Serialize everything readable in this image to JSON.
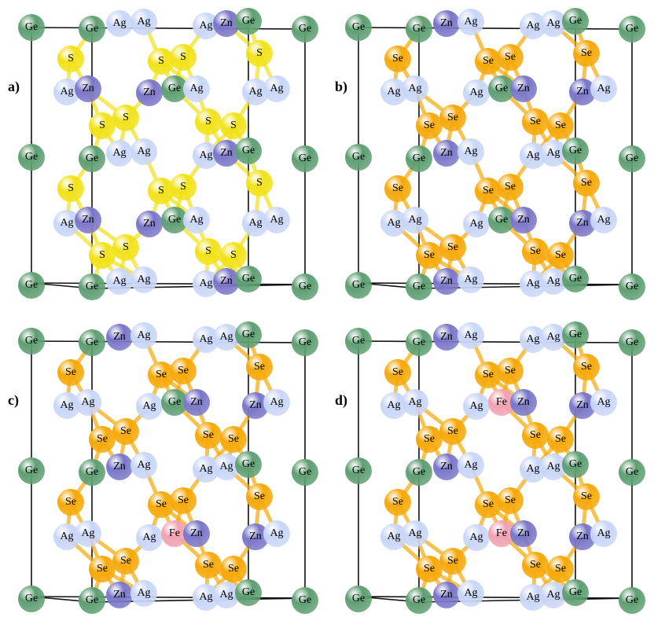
{
  "atom_colors": {
    "Ge": "#5f9f73",
    "Ag": "#c9d6f7",
    "Zn": "#7b77c9",
    "S": "#f2e21a",
    "Se": "#f6a90a",
    "Fe": "#f1a2b2"
  },
  "panels": [
    {
      "label": "a)",
      "atoms": [
        "Ge",
        "Ge",
        "Ag",
        "Ag",
        "Ag",
        "Zn",
        "Ge",
        "Ge",
        "S",
        "S",
        "S",
        "S",
        "Ag",
        "Zn",
        "Zn",
        "Ge",
        "Ag",
        "Ag",
        "Ag",
        "S",
        "S",
        "S",
        "S",
        "Ge",
        "Ge",
        "Ag",
        "Ag",
        "Ag",
        "Zn",
        "Ge",
        "Ge",
        "S",
        "S",
        "S",
        "S",
        "Ag",
        "Zn",
        "Zn",
        "Ge",
        "Ag",
        "Ag",
        "Ag",
        "S",
        "S",
        "S",
        "S",
        "Ge",
        "Ge",
        "Ag",
        "Ag",
        "Ag",
        "Zn",
        "Ge",
        "Ge"
      ]
    },
    {
      "label": "b)",
      "atoms": [
        "Ge",
        "Ge",
        "Zn",
        "Ag",
        "Ag",
        "Ag",
        "Ge",
        "Ge",
        "Se",
        "Se",
        "Se",
        "Se",
        "Ag",
        "Ag",
        "Ag",
        "Ge",
        "Zn",
        "Zn",
        "Ag",
        "Se",
        "Se",
        "Se",
        "Se",
        "Ge",
        "Ge",
        "Zn",
        "Ag",
        "Ag",
        "Ag",
        "Ge",
        "Ge",
        "Se",
        "Se",
        "Se",
        "Se",
        "Ag",
        "Ag",
        "Ag",
        "Ge",
        "Zn",
        "Zn",
        "Ag",
        "Se",
        "Se",
        "Se",
        "Se",
        "Ge",
        "Ge",
        "Zn",
        "Ag",
        "Ag",
        "Ag",
        "Ge",
        "Ge"
      ]
    },
    {
      "label": "c)",
      "atoms": [
        "Ge",
        "Ge",
        "Zn",
        "Ag",
        "Ag",
        "Ag",
        "Ge",
        "Ge",
        "Se",
        "Se",
        "Se",
        "Se",
        "Ag",
        "Ag",
        "Ag",
        "Ge",
        "Zn",
        "Zn",
        "Ag",
        "Se",
        "Se",
        "Se",
        "Se",
        "Ge",
        "Ge",
        "Zn",
        "Ag",
        "Ag",
        "Ag",
        "Ge",
        "Ge",
        "Se",
        "Se",
        "Se",
        "Se",
        "Ag",
        "Ag",
        "Ag",
        "Fe",
        "Zn",
        "Zn",
        "Ag",
        "Se",
        "Se",
        "Se",
        "Se",
        "Ge",
        "Ge",
        "Zn",
        "Ag",
        "Ag",
        "Ag",
        "Ge",
        "Ge"
      ]
    },
    {
      "label": "d)",
      "atoms": [
        "Ge",
        "Ge",
        "Zn",
        "Ag",
        "Ag",
        "Ag",
        "Ge",
        "Ge",
        "Se",
        "Se",
        "Se",
        "Se",
        "Ag",
        "Ag",
        "Ag",
        "Fe",
        "Zn",
        "Zn",
        "Ag",
        "Se",
        "Se",
        "Se",
        "Se",
        "Ge",
        "Ge",
        "Zn",
        "Ag",
        "Ag",
        "Ag",
        "Ge",
        "Ge",
        "Se",
        "Se",
        "Se",
        "Se",
        "Ag",
        "Ag",
        "Ag",
        "Fe",
        "Zn",
        "Zn",
        "Ag",
        "Se",
        "Se",
        "Se",
        "Se",
        "Ge",
        "Ge",
        "Zn",
        "Ag",
        "Ag",
        "Ag",
        "Ge",
        "Ge"
      ]
    }
  ]
}
